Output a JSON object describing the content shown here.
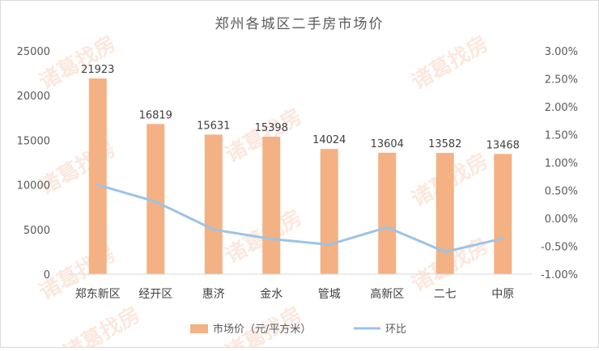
{
  "chart_data": {
    "type": "bar+line",
    "title": "郑州各城区二手房市场价",
    "categories": [
      "郑东新区",
      "经开区",
      "惠济",
      "金水",
      "管城",
      "高新区",
      "二七",
      "中原"
    ],
    "series": [
      {
        "name": "市场价（元/平方米）",
        "type": "bar",
        "axis": "left",
        "color": "#F4B183",
        "values": [
          21923,
          16819,
          15631,
          15398,
          14024,
          13604,
          13582,
          13468
        ],
        "data_labels": [
          "21923",
          "16819",
          "15631",
          "15398",
          "14024",
          "13604",
          "13582",
          "13468"
        ]
      },
      {
        "name": "环比",
        "type": "line",
        "axis": "right",
        "color": "#9DC3E6",
        "values": [
          0.006,
          0.003,
          -0.002,
          -0.0037,
          -0.0047,
          -0.0016,
          -0.006,
          -0.0036
        ]
      }
    ],
    "left_axis": {
      "min": 0,
      "max": 25000,
      "ticks": [
        0,
        5000,
        10000,
        15000,
        20000,
        25000
      ],
      "tick_labels": [
        "0",
        "5000",
        "10000",
        "15000",
        "20000",
        "25000"
      ]
    },
    "right_axis": {
      "min": -0.01,
      "max": 0.03,
      "ticks": [
        -0.01,
        -0.005,
        0,
        0.005,
        0.01,
        0.015,
        0.02,
        0.025,
        0.03
      ],
      "tick_labels": [
        "-1.00%",
        "-0.50%",
        "0.00%",
        "0.50%",
        "1.00%",
        "1.50%",
        "2.00%",
        "2.50%",
        "3.00%"
      ]
    },
    "grid": false,
    "legend_position": "bottom",
    "watermark": "诸葛找房"
  }
}
